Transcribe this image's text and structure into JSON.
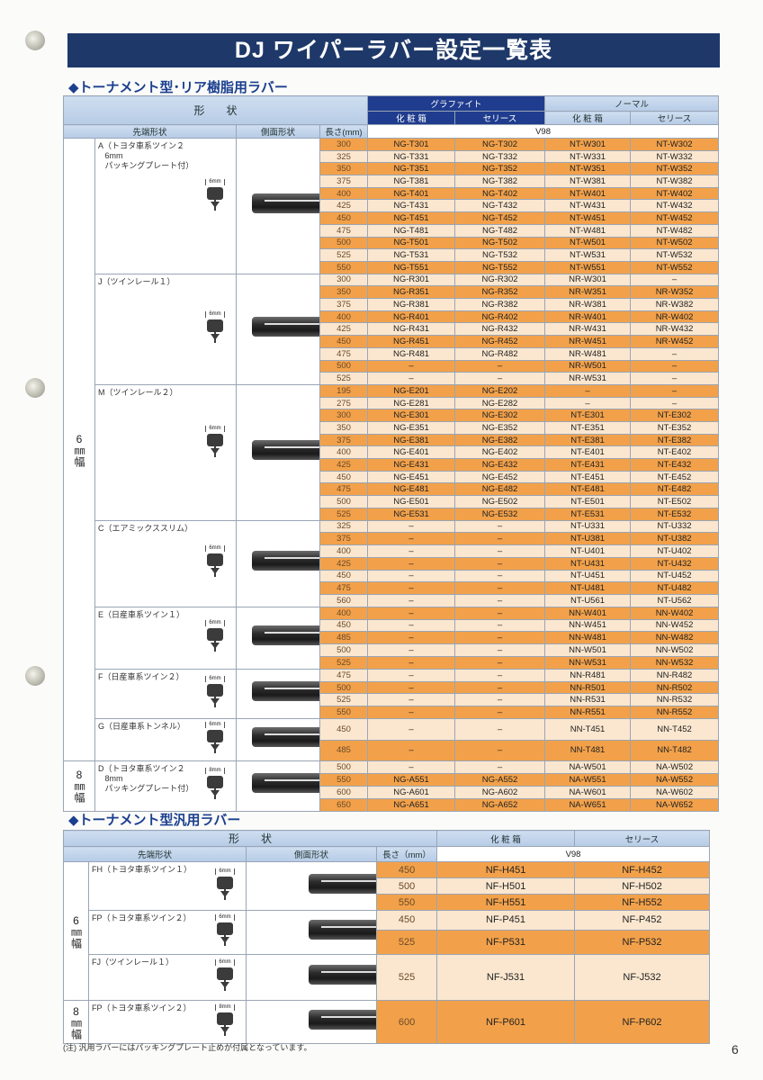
{
  "title": "DJ ワイパーラバー設定一覧表",
  "section1": {
    "heading": "◆トーナメント型･リア樹脂用ラバー",
    "header": {
      "shape": "形　　状",
      "tip_shape": "先端形状",
      "side_shape": "側面形状",
      "length": "長さ(mm)",
      "graphite": "グラファイト",
      "normal": "ノーマル",
      "box": "化 粧 箱",
      "series": "セリース",
      "box2": "化 粧 箱",
      "series2": "セリース",
      "v98": "V98"
    },
    "width_groups": [
      {
        "label": "6㎜幅",
        "shapes": [
          {
            "label": "A（トヨタ車系ツイン２\n   6mm\n   パッキングプレート付）",
            "tip_mm": "6mm",
            "rows": [
              [
                "300",
                "NG-T301",
                "NG-T302",
                "NT-W301",
                "NT-W302"
              ],
              [
                "325",
                "NG-T331",
                "NG-T332",
                "NT-W331",
                "NT-W332"
              ],
              [
                "350",
                "NG-T351",
                "NG-T352",
                "NT-W351",
                "NT-W352"
              ],
              [
                "375",
                "NG-T381",
                "NG-T382",
                "NT-W381",
                "NT-W382"
              ],
              [
                "400",
                "NG-T401",
                "NG-T402",
                "NT-W401",
                "NT-W402"
              ],
              [
                "425",
                "NG-T431",
                "NG-T432",
                "NT-W431",
                "NT-W432"
              ],
              [
                "450",
                "NG-T451",
                "NG-T452",
                "NT-W451",
                "NT-W452"
              ],
              [
                "475",
                "NG-T481",
                "NG-T482",
                "NT-W481",
                "NT-W482"
              ],
              [
                "500",
                "NG-T501",
                "NG-T502",
                "NT-W501",
                "NT-W502"
              ],
              [
                "525",
                "NG-T531",
                "NG-T532",
                "NT-W531",
                "NT-W532"
              ],
              [
                "550",
                "NG-T551",
                "NG-T552",
                "NT-W551",
                "NT-W552"
              ]
            ]
          },
          {
            "label": "J（ツインレール１）",
            "tip_mm": "6mm",
            "rows": [
              [
                "300",
                "NG-R301",
                "NG-R302",
                "NR-W301",
                "–"
              ],
              [
                "350",
                "NG-R351",
                "NG-R352",
                "NR-W351",
                "NR-W352"
              ],
              [
                "375",
                "NG-R381",
                "NG-R382",
                "NR-W381",
                "NR-W382"
              ],
              [
                "400",
                "NG-R401",
                "NG-R402",
                "NR-W401",
                "NR-W402"
              ],
              [
                "425",
                "NG-R431",
                "NG-R432",
                "NR-W431",
                "NR-W432"
              ],
              [
                "450",
                "NG-R451",
                "NG-R452",
                "NR-W451",
                "NR-W452"
              ],
              [
                "475",
                "NG-R481",
                "NG-R482",
                "NR-W481",
                "–"
              ],
              [
                "500",
                "–",
                "–",
                "NR-W501",
                "–"
              ],
              [
                "525",
                "–",
                "–",
                "NR-W531",
                "–"
              ]
            ]
          },
          {
            "label": "M（ツインレール２）",
            "tip_mm": "6mm",
            "rows": [
              [
                "195",
                "NG-E201",
                "NG-E202",
                "–",
                "–"
              ],
              [
                "275",
                "NG-E281",
                "NG-E282",
                "–",
                "–"
              ],
              [
                "300",
                "NG-E301",
                "NG-E302",
                "NT-E301",
                "NT-E302"
              ],
              [
                "350",
                "NG-E351",
                "NG-E352",
                "NT-E351",
                "NT-E352"
              ],
              [
                "375",
                "NG-E381",
                "NG-E382",
                "NT-E381",
                "NT-E382"
              ],
              [
                "400",
                "NG-E401",
                "NG-E402",
                "NT-E401",
                "NT-E402"
              ],
              [
                "425",
                "NG-E431",
                "NG-E432",
                "NT-E431",
                "NT-E432"
              ],
              [
                "450",
                "NG-E451",
                "NG-E452",
                "NT-E451",
                "NT-E452"
              ],
              [
                "475",
                "NG-E481",
                "NG-E482",
                "NT-E481",
                "NT-E482"
              ],
              [
                "500",
                "NG-E501",
                "NG-E502",
                "NT-E501",
                "NT-E502"
              ],
              [
                "525",
                "NG-E531",
                "NG-E532",
                "NT-E531",
                "NT-E532"
              ]
            ]
          },
          {
            "label": "C（エアミックススリム）",
            "tip_mm": "6mm",
            "rows": [
              [
                "325",
                "–",
                "–",
                "NT-U331",
                "NT-U332"
              ],
              [
                "375",
                "–",
                "–",
                "NT-U381",
                "NT-U382"
              ],
              [
                "400",
                "–",
                "–",
                "NT-U401",
                "NT-U402"
              ],
              [
                "425",
                "–",
                "–",
                "NT-U431",
                "NT-U432"
              ],
              [
                "450",
                "–",
                "–",
                "NT-U451",
                "NT-U452"
              ],
              [
                "475",
                "–",
                "–",
                "NT-U481",
                "NT-U482"
              ],
              [
                "560",
                "–",
                "–",
                "NT-U561",
                "NT-U562"
              ]
            ]
          },
          {
            "label": "E（日産車系ツイン１）",
            "tip_mm": "6mm",
            "rows": [
              [
                "400",
                "–",
                "–",
                "NN-W401",
                "NN-W402"
              ],
              [
                "450",
                "–",
                "–",
                "NN-W451",
                "NN-W452"
              ],
              [
                "485",
                "–",
                "–",
                "NN-W481",
                "NN-W482"
              ],
              [
                "500",
                "–",
                "–",
                "NN-W501",
                "NN-W502"
              ],
              [
                "525",
                "–",
                "–",
                "NN-W531",
                "NN-W532"
              ]
            ]
          },
          {
            "label": "F（日産車系ツイン２）",
            "tip_mm": "6mm",
            "rows": [
              [
                "475",
                "–",
                "–",
                "NN-R481",
                "NN-R482"
              ],
              [
                "500",
                "–",
                "–",
                "NN-R501",
                "NN-R502"
              ],
              [
                "525",
                "–",
                "–",
                "NN-R531",
                "NN-R532"
              ],
              [
                "550",
                "–",
                "–",
                "NN-R551",
                "NN-R552"
              ]
            ]
          },
          {
            "label": "G（日産車系トンネル）",
            "tip_mm": "6mm",
            "tall": true,
            "rows": [
              [
                "450",
                "–",
                "–",
                "NN-T451",
                "NN-T452"
              ],
              [
                "485",
                "–",
                "–",
                "NN-T481",
                "NN-T482"
              ]
            ]
          }
        ]
      },
      {
        "label": "8㎜幅",
        "shapes": [
          {
            "label": "D（トヨタ車系ツイン２\n   8mm\n   パッキングプレート付）",
            "tip_mm": "8mm",
            "rows": [
              [
                "500",
                "–",
                "–",
                "NA-W501",
                "NA-W502"
              ],
              [
                "550",
                "NG-A551",
                "NG-A552",
                "NA-W551",
                "NA-W552"
              ],
              [
                "600",
                "NG-A601",
                "NG-A602",
                "NA-W601",
                "NA-W602"
              ],
              [
                "650",
                "NG-A651",
                "NG-A652",
                "NA-W651",
                "NA-W652"
              ]
            ]
          }
        ]
      }
    ]
  },
  "section2": {
    "heading": "◆トーナメント型汎用ラバー",
    "header": {
      "shape": "形　　状",
      "tip_shape": "先端形状",
      "side_shape": "側面形状",
      "length": "長さ（mm）",
      "box": "化 粧 箱",
      "series": "セリース",
      "v98": "V98"
    },
    "width_groups": [
      {
        "label": "6㎜幅",
        "shapes": [
          {
            "label": "FH（トヨタ車系ツイン１）",
            "tip_mm": "6mm",
            "rows": [
              [
                "450",
                "NF-H451",
                "NF-H452"
              ],
              [
                "500",
                "NF-H501",
                "NF-H502"
              ],
              [
                "550",
                "NF-H551",
                "NF-H552"
              ]
            ]
          },
          {
            "label": "FP（トヨタ車系ツイン２）",
            "tip_mm": "6mm",
            "rows": [
              [
                "450",
                "NF-P451",
                "NF-P452"
              ],
              [
                "525",
                "NF-P531",
                "NF-P532"
              ]
            ]
          },
          {
            "label": "FJ（ツインレール１）",
            "tip_mm": "6mm",
            "rows": [
              [
                "525",
                "NF-J531",
                "NF-J532"
              ]
            ]
          }
        ]
      },
      {
        "label": "8㎜幅",
        "shapes": [
          {
            "label": "FP（トヨタ車系ツイン２）",
            "tip_mm": "8mm",
            "rows": [
              [
                "600",
                "NF-P601",
                "NF-P602"
              ]
            ]
          }
        ]
      }
    ],
    "note": "(注) 汎用ラバーにはパッキングプレート止めが付属となっています。"
  },
  "page_number": "6",
  "colors": {
    "title_bg": "#1e3869",
    "graphite_header": "#1f3c8e",
    "row_orange": "#f2a14a",
    "row_light": "#fbe7cf",
    "heading_blue": "#1b3f8f"
  }
}
